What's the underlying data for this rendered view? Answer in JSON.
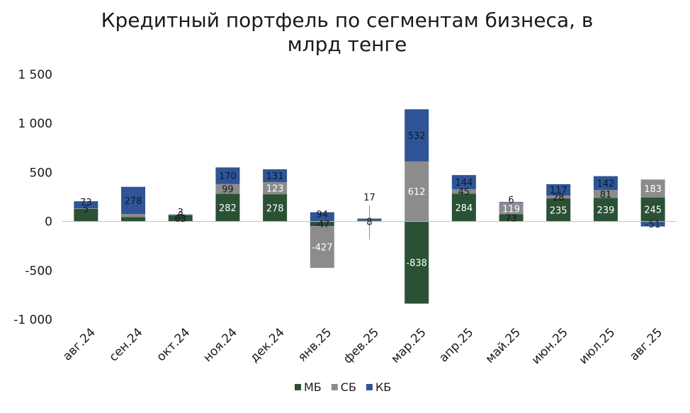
{
  "chart_data": {
    "type": "bar",
    "stacked": true,
    "title": "Кредитный портфель по сегментам бизнеса, в млрд тенге",
    "categories": [
      "авг.24",
      "сен.24",
      "окт.24",
      "ноя.24",
      "дек.24",
      "янв.25",
      "фев.25",
      "мар.25",
      "апр.25",
      "май.25",
      "июн.25",
      "июл.25",
      "авг.25"
    ],
    "series": [
      {
        "name": "МБ",
        "color": "#2a5134",
        "values": [
          128,
          45,
          63,
          282,
          278,
          -47,
          8,
          -838,
          284,
          73,
          235,
          239,
          245
        ]
      },
      {
        "name": "СБ",
        "color": "#8c8c8c",
        "values": [
          5,
          30,
          6,
          99,
          123,
          -427,
          4,
          612,
          45,
          119,
          28,
          81,
          183
        ]
      },
      {
        "name": "КБ",
        "color": "#2f5597",
        "values": [
          73,
          278,
          3,
          170,
          131,
          94,
          17,
          532,
          144,
          6,
          117,
          142,
          -51
        ]
      }
    ],
    "data_labels": [
      [
        "",
        "",
        "63",
        "282",
        "278",
        "-47",
        "8",
        "-838",
        "284",
        "73",
        "235",
        "239",
        "245"
      ],
      [
        "5",
        "",
        "6",
        "99",
        "123",
        "-427",
        "",
        "612",
        "45",
        "119",
        "28",
        "81",
        "183"
      ],
      [
        "73",
        "278",
        "3",
        "170",
        "131",
        "94",
        "17",
        "532",
        "144",
        "6",
        "117",
        "142",
        "-51"
      ]
    ],
    "y_ticks": [
      1500,
      1000,
      500,
      0,
      -500,
      -1000
    ],
    "y_tick_labels": [
      "1 500",
      "1 000",
      "500",
      "0",
      "-500",
      "-1 000"
    ],
    "ylim": [
      -1000,
      1500
    ],
    "legend_position": "bottom",
    "grid": false
  }
}
